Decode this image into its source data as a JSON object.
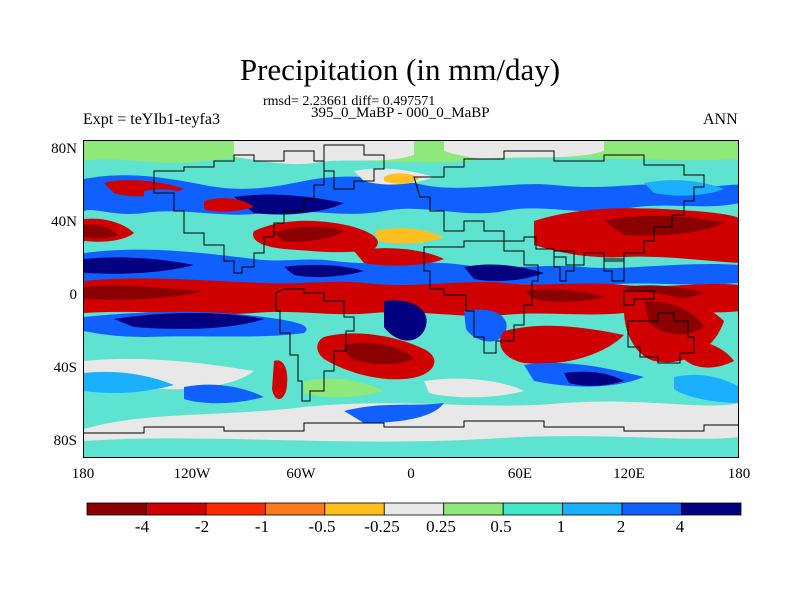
{
  "title": "Precipitation (in mm/day)",
  "stats": "rmsd= 2.23661 diff= 0.497571",
  "subtitle": "395_0_MaBP - 000_0_MaBP",
  "experiment": "Expt = teYIb1-teyfa3",
  "season": "ANN",
  "lat_labels": [
    "80N",
    "40N",
    "0",
    "40S",
    "80S"
  ],
  "lon_labels": [
    "180",
    "120W",
    "60W",
    "0",
    "60E",
    "120E",
    "180"
  ],
  "colorbar": {
    "labels": [
      "-4",
      "-2",
      "-1",
      "-0.5",
      "-0.25",
      "0.25",
      "0.5",
      "1",
      "2",
      "4"
    ],
    "colors": [
      "#8b0000",
      "#d10000",
      "#ff2a00",
      "#ff7a1a",
      "#ffbf1f",
      "#e8e8e8",
      "#8fe87a",
      "#3fe8c8",
      "#1ab0ff",
      "#1060ff",
      "#000080"
    ]
  },
  "map_colors": {
    "background": "#5ee3d0",
    "darkred": "#8b0000",
    "red": "#d10000",
    "orange": "#ff5a1a",
    "gold": "#ffbf1f",
    "neutral": "#e8e8e8",
    "green": "#8fe87a",
    "cyan": "#3fe8c8",
    "lightblue": "#1ab0ff",
    "blue": "#1060ff",
    "navy": "#000080"
  }
}
